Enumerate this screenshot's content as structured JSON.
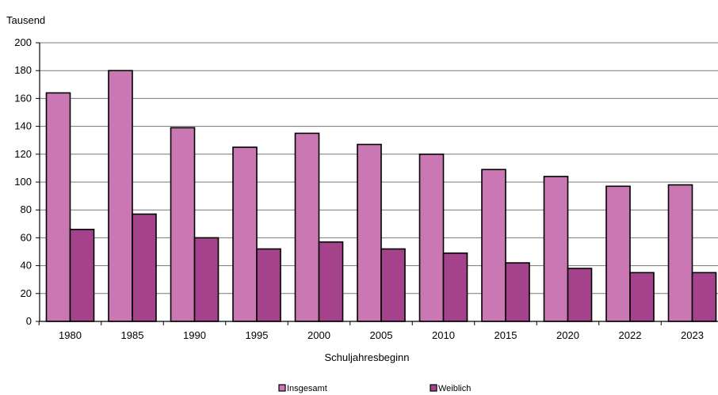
{
  "chart_data": {
    "type": "bar",
    "title": "",
    "ylabel": "Tausend",
    "xlabel": "Schuljahresbeginn",
    "categories": [
      "1980",
      "1985",
      "1990",
      "1995",
      "2000",
      "2005",
      "2010",
      "2015",
      "2020",
      "2022",
      "2023"
    ],
    "series": [
      {
        "name": "Insgesamt",
        "color": "#c978b4",
        "values": [
          164,
          180,
          139,
          125,
          135,
          127,
          120,
          109,
          104,
          97,
          98
        ]
      },
      {
        "name": "Weiblich",
        "color": "#a4438b",
        "values": [
          66,
          77,
          60,
          52,
          57,
          52,
          49,
          42,
          38,
          35,
          35
        ]
      }
    ],
    "ylim": [
      0,
      200
    ],
    "yticks": [
      0,
      20,
      40,
      60,
      80,
      100,
      120,
      140,
      160,
      180,
      200
    ],
    "grid": true,
    "legend": "bottom"
  }
}
